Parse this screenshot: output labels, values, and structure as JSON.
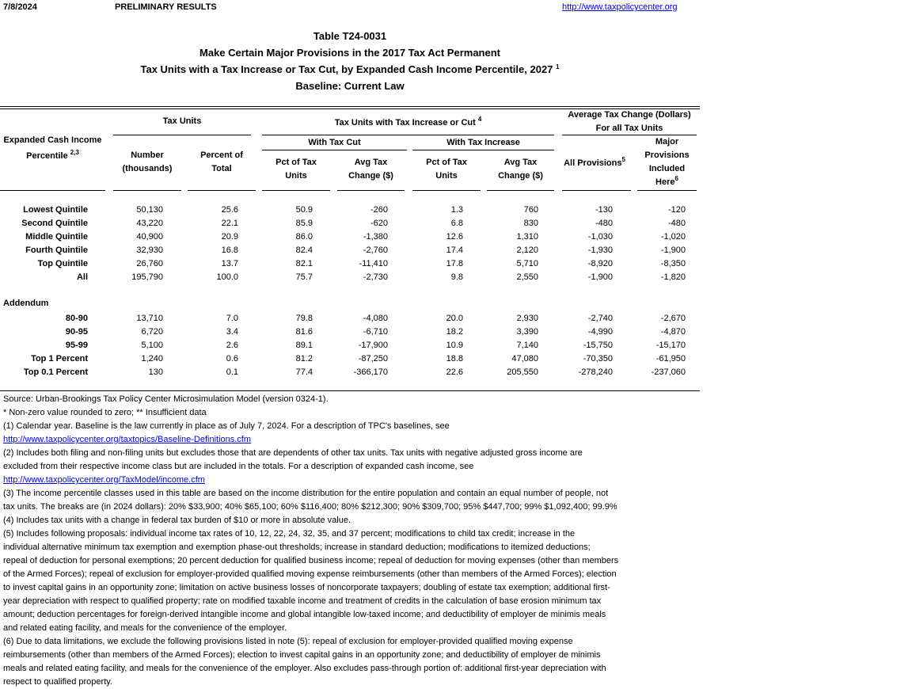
{
  "header": {
    "date": "7/8/2024",
    "status": "PRELIMINARY RESULTS",
    "link": "http://www.taxpolicycenter.org"
  },
  "titles": {
    "table_id": "Table T24-0031",
    "line1": "Make Certain Major Provisions in the 2017 Tax Act Permanent",
    "line2": "Tax Units with a Tax Increase or Tax Cut, by Expanded Cash Income Percentile, 2027",
    "line2_note": "1",
    "line3": "Baseline: Current Law"
  },
  "columns": {
    "percentile": "Expanded Cash Income",
    "percentile2": "Percentile",
    "percentile_note": "2,3",
    "tax_units": "Tax Units",
    "number1": "Number",
    "number2": "(thousands)",
    "pct_total1": "Percent of",
    "pct_total2": "Total",
    "incr_cut": "Tax Units with Tax Increase or Cut",
    "incr_cut_note": "4",
    "with_cut": "With Tax Cut",
    "with_increase": "With Tax Increase",
    "pct_units1": "Pct of Tax",
    "pct_units2": "Units",
    "avg_change1": "Avg Tax",
    "avg_change2": "Change ($)",
    "avg_all1": "Average Tax Change (Dollars)",
    "avg_all2": "For all Tax Units",
    "all_prov": "All Provisions",
    "all_prov_note": "5",
    "major1": "Major",
    "major2": "Provisions",
    "major3": "Included",
    "major4": "Here",
    "major_note": "6"
  },
  "rows": [
    [
      "Lowest Quintile",
      "50,130",
      "25.6",
      "50.9",
      "-260",
      "1.3",
      "760",
      "-130",
      "-120"
    ],
    [
      "Second Quintile",
      "43,220",
      "22.1",
      "85.9",
      "-620",
      "6.8",
      "830",
      "-480",
      "-480"
    ],
    [
      "Middle Quintile",
      "40,900",
      "20.9",
      "86.0",
      "-1,380",
      "12.6",
      "1,310",
      "-1,030",
      "-1,020"
    ],
    [
      "Fourth Quintile",
      "32,930",
      "16.8",
      "82.4",
      "-2,760",
      "17.4",
      "2,120",
      "-1,930",
      "-1,900"
    ],
    [
      "Top Quintile",
      "26,760",
      "13.7",
      "82.1",
      "-11,410",
      "17.8",
      "5,710",
      "-8,920",
      "-8,350"
    ],
    [
      "All",
      "195,790",
      "100.0",
      "75.7",
      "-2,730",
      "9.8",
      "2,550",
      "-1,900",
      "-1,820"
    ]
  ],
  "addendum_label": "Addendum",
  "addendum_rows": [
    [
      "80-90",
      "13,710",
      "7.0",
      "79.8",
      "-4,080",
      "20.0",
      "2,930",
      "-2,740",
      "-2,670"
    ],
    [
      "90-95",
      "6,720",
      "3.4",
      "81.6",
      "-6,710",
      "18.2",
      "3,390",
      "-4,990",
      "-4,870"
    ],
    [
      "95-99",
      "5,100",
      "2.6",
      "89.1",
      "-17,900",
      "10.9",
      "7,140",
      "-15,750",
      "-15,170"
    ],
    [
      "Top 1 Percent",
      "1,240",
      "0.6",
      "81.2",
      "-87,250",
      "18.8",
      "47,080",
      "-70,350",
      "-61,950"
    ],
    [
      "Top 0.1 Percent",
      "130",
      "0.1",
      "77.4",
      "-366,170",
      "22.6",
      "205,550",
      "-278,240",
      "-237,060"
    ]
  ],
  "notes": [
    {
      "text": "Source: Urban-Brookings Tax Policy Center Microsimulation Model (version 0324-1)."
    },
    {
      "text": "* Non-zero value rounded to zero; ** Insufficient data"
    },
    {
      "text": "(1) Calendar year. Baseline is the law currently in place as of July 7, 2024. For a description of TPC's baselines, see"
    },
    {
      "text": "http://www.taxpolicycenter.org/taxtopics/Baseline-Definitions.cfm",
      "link": true
    },
    {
      "text": "(2) Includes both filing and non-filing units but excludes those that are dependents of other tax units. Tax units with negative adjusted gross income are"
    },
    {
      "text": "excluded from their respective income class but are included in the totals. For a description of expanded cash income, see"
    },
    {
      "text": "http://www.taxpolicycenter.org/TaxModel/income.cfm",
      "link": true
    },
    {
      "text": "(3) The income percentile classes used in this table are based on the income distribution for the entire population and contain an equal number of people, not"
    },
    {
      "text": "tax units. The breaks are (in 2024 dollars): 20% $33,900; 40% $65,100; 60% $116,400; 80% $212,300; 90% $309,700; 95% $447,700; 99% $1,092,400; 99.9%"
    },
    {
      "text": "(4) Includes tax units with a change in federal tax burden of $10 or more in absolute value."
    },
    {
      "text": "(5) Includes following proposals: individual income tax rates of 10, 12, 22, 24, 32, 35, and 37 percent; modifications to child tax credit; increase in the"
    },
    {
      "text": "individual alternative minimum tax exemption and exemption phase-out thresholds; increase in standard deduction; modifications to itemized deductions;"
    },
    {
      "text": "repeal of deduction for personal exemptions; 20 percent deduction for qualified business income; repeal of deduction for moving expenses (other than members"
    },
    {
      "text": "of the Armed Forces); repeal of exclusion for employer-provided qualified moving expense reimbursements (other than members of the Armed Forces); election"
    },
    {
      "text": "to invest capital gains in an opportunity zone; limitation on active business losses of noncorporate taxpayers; doubling of estate tax exemption; additional first-"
    },
    {
      "text": "year depreciation with respect to qualified property; rate on modified taxable income and treatment of credits in the calculation of base erosion minimum tax"
    },
    {
      "text": "amount; deduction percentages for foreign-derived intangible income and global intangible low-taxed income; and deductibility of employer de minimis meals"
    },
    {
      "text": "and related eating facility, and meals for the convenience of the employer."
    },
    {
      "text": "(6) Due to data limitations, we exclude the following provisions listed in note (5): repeal of exclusion for employer-provided qualified moving expense"
    },
    {
      "text": "reimbursements (other than members of the Armed Forces); election to invest capital gains in an opportunity zone; and deductibility of employer de minimis"
    },
    {
      "text": "meals and related eating facility, and meals for the convenience of the employer. Also excludes pass-through portion of: additional first-year depreciation with"
    },
    {
      "text": "respect to qualified property."
    }
  ],
  "colors": {
    "link": "#0000ee"
  }
}
